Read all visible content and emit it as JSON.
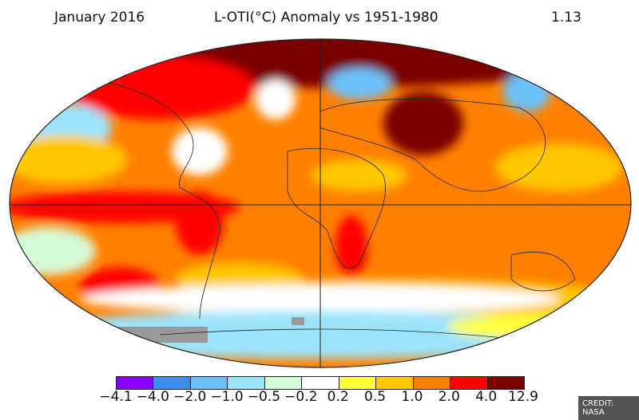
{
  "header": {
    "date": "January 2016",
    "title": "L-OTI(°C) Anomaly vs 1951-1980",
    "global_mean": "1.13"
  },
  "colorbar": {
    "ticks": [
      "−4.1",
      "−4.0",
      "−2.0",
      "−1.0",
      "−0.5",
      "−0.2",
      "0.2",
      "0.5",
      "1.0",
      "2.0",
      "4.0",
      "12.9"
    ],
    "colors": [
      "#8a00ff",
      "#3d8cf0",
      "#6cc0f8",
      "#9be3fb",
      "#d6fbd8",
      "#ffffff",
      "#ffff3c",
      "#ffc800",
      "#ff8000",
      "#ff0000",
      "#7a0000"
    ]
  },
  "credit": "CREDIT: NASA"
}
